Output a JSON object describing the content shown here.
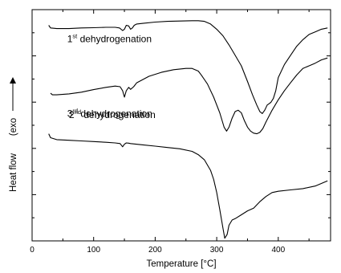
{
  "chart_data": {
    "type": "line",
    "title": "",
    "xlabel": "Temperature [°C]",
    "ylabel": "Heat flow",
    "ylabel_note": "(exo",
    "exo_direction": "up",
    "xlim": [
      0,
      485
    ],
    "xticks": [
      0,
      100,
      200,
      300,
      400
    ],
    "xtick_labels": [
      "0",
      "100",
      "200",
      "300",
      "400"
    ],
    "yaxis_tick_labels_shown": false,
    "grid": false,
    "legend": "none",
    "line_color": "#000000",
    "annotations": [
      {
        "ordinal": "1",
        "sup": "st",
        "text": "dehydrogenation"
      },
      {
        "ordinal": "2",
        "sup": "nd",
        "text": "dehydrogenation"
      },
      {
        "ordinal": "3",
        "sup": "rd",
        "text": "dehydrogenation"
      }
    ],
    "series": [
      {
        "x": [
          27,
          30,
          40,
          60,
          80,
          100,
          120,
          135,
          142,
          147,
          150,
          153,
          157,
          160,
          163,
          166,
          170,
          180,
          200,
          220,
          240,
          260,
          270,
          280,
          290,
          300,
          310,
          320,
          330,
          340,
          350,
          358,
          365,
          370,
          374,
          378,
          382,
          385,
          388,
          392,
          396,
          400,
          410,
          420,
          430,
          440,
          450,
          460,
          470,
          480
        ],
        "y": [
          0.93,
          0.91,
          0.905,
          0.905,
          0.91,
          0.912,
          0.915,
          0.915,
          0.91,
          0.89,
          0.9,
          0.93,
          0.925,
          0.9,
          0.91,
          0.93,
          0.94,
          0.945,
          0.955,
          0.96,
          0.963,
          0.965,
          0.965,
          0.96,
          0.94,
          0.9,
          0.85,
          0.78,
          0.7,
          0.62,
          0.5,
          0.4,
          0.32,
          0.27,
          0.255,
          0.28,
          0.32,
          0.33,
          0.34,
          0.37,
          0.43,
          0.53,
          0.63,
          0.7,
          0.77,
          0.82,
          0.86,
          0.88,
          0.9,
          0.91
        ]
      },
      {
        "x": [
          30,
          33,
          40,
          60,
          80,
          100,
          120,
          135,
          143,
          147,
          150,
          153,
          157,
          160,
          165,
          170,
          190,
          210,
          230,
          250,
          260,
          270,
          275,
          285,
          295,
          305,
          312,
          316,
          320,
          325,
          330,
          335,
          340,
          345,
          350,
          355,
          360,
          365,
          370,
          375,
          380,
          390,
          400,
          410,
          420,
          430,
          440,
          450,
          460,
          470,
          480
        ],
        "y": [
          0.41,
          0.398,
          0.398,
          0.405,
          0.418,
          0.438,
          0.455,
          0.465,
          0.46,
          0.43,
          0.38,
          0.43,
          0.455,
          0.44,
          0.46,
          0.49,
          0.54,
          0.57,
          0.59,
          0.6,
          0.6,
          0.58,
          0.55,
          0.48,
          0.38,
          0.26,
          0.15,
          0.12,
          0.15,
          0.22,
          0.27,
          0.28,
          0.26,
          0.2,
          0.15,
          0.12,
          0.105,
          0.1,
          0.11,
          0.14,
          0.19,
          0.28,
          0.36,
          0.43,
          0.49,
          0.55,
          0.6,
          0.62,
          0.64,
          0.665,
          0.68
        ]
      },
      {
        "x": [
          27,
          30,
          40,
          60,
          80,
          100,
          120,
          135,
          143,
          147,
          150,
          153,
          157,
          160,
          180,
          200,
          220,
          240,
          260,
          270,
          280,
          290,
          295,
          300,
          305,
          310,
          313,
          317,
          320,
          325,
          330,
          340,
          350,
          360,
          370,
          380,
          390,
          400,
          420,
          440,
          460,
          480
        ],
        "y": [
          0.1,
          0.07,
          0.055,
          0.05,
          0.045,
          0.04,
          0.035,
          0.03,
          0.025,
          0.0,
          0.02,
          0.03,
          0.028,
          0.025,
          0.015,
          0.005,
          -0.005,
          -0.015,
          -0.035,
          -0.06,
          -0.1,
          -0.18,
          -0.25,
          -0.35,
          -0.48,
          -0.62,
          -0.7,
          -0.67,
          -0.6,
          -0.56,
          -0.55,
          -0.52,
          -0.49,
          -0.47,
          -0.42,
          -0.38,
          -0.35,
          -0.34,
          -0.33,
          -0.32,
          -0.3,
          -0.26
        ]
      }
    ]
  }
}
